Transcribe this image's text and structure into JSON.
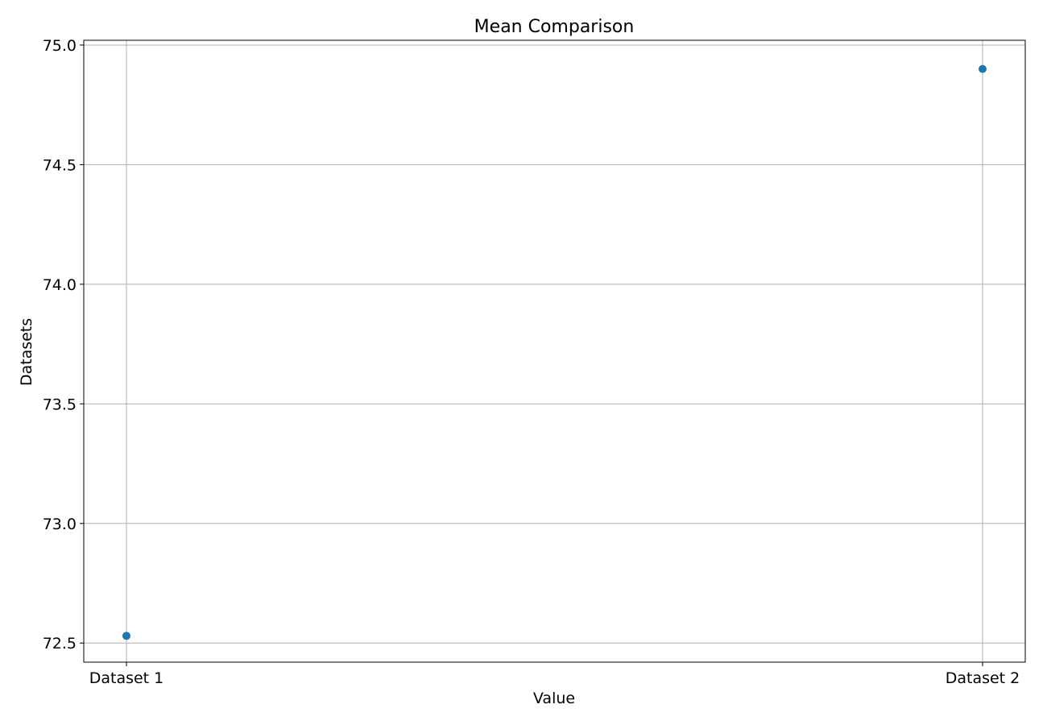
{
  "chart_data": {
    "type": "scatter",
    "title": "Mean Comparison",
    "xlabel": "Value",
    "ylabel": "Datasets",
    "categories": [
      "Dataset 1",
      "Dataset 2"
    ],
    "series": [
      {
        "values": [
          72.53,
          74.9
        ]
      }
    ],
    "ylim": [
      72.42,
      75.02
    ],
    "yticks": [
      72.5,
      73.0,
      73.5,
      74.0,
      74.5,
      75.0
    ],
    "ytick_labels": [
      "72.5",
      "73.0",
      "73.5",
      "74.0",
      "74.5",
      "75.0"
    ],
    "grid": true,
    "colors": {
      "marker": "#1f77b4"
    }
  }
}
